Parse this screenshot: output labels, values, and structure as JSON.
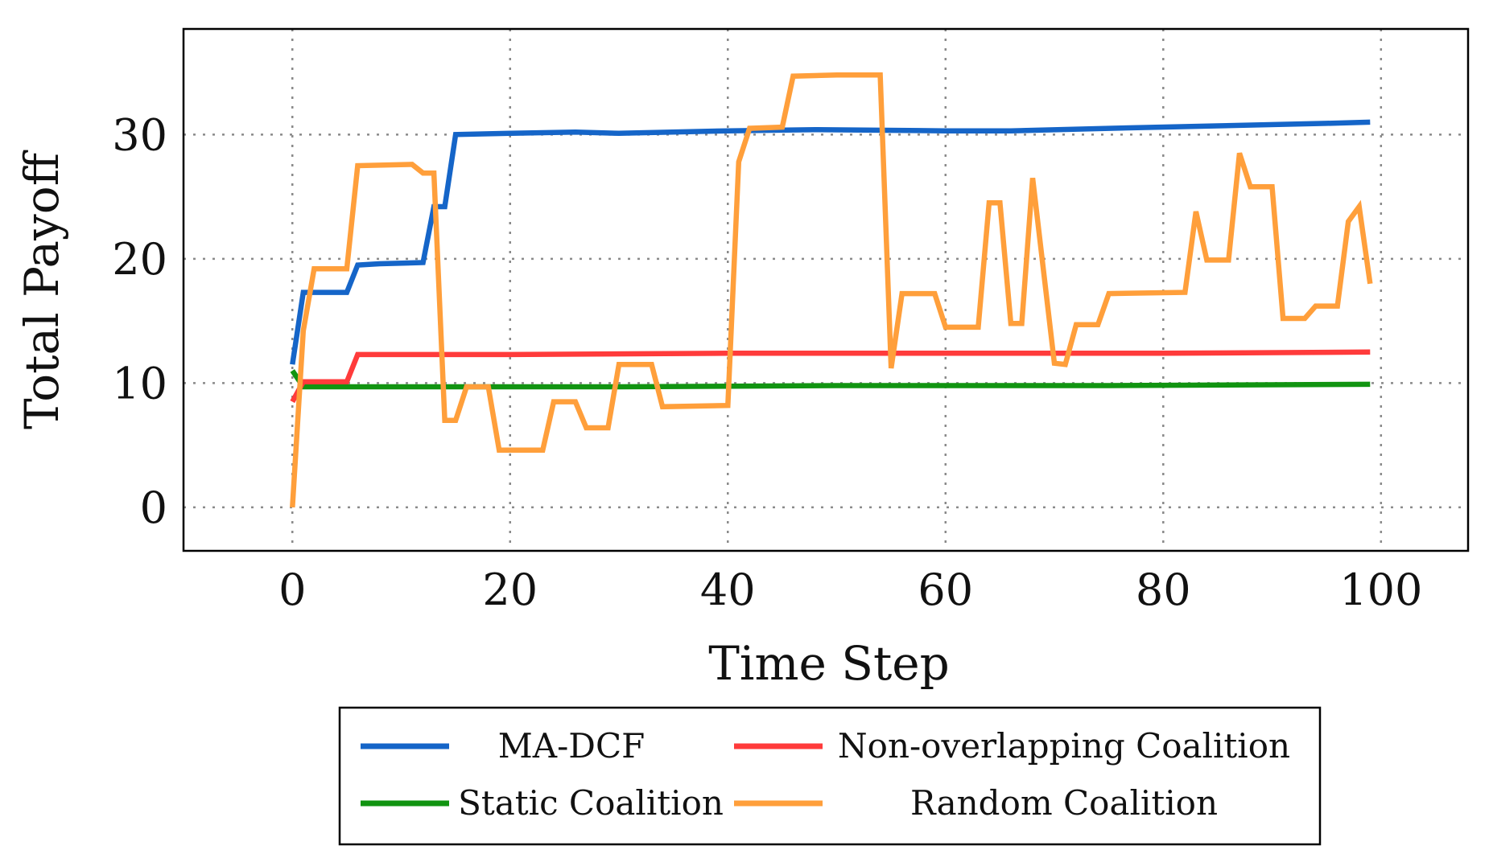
{
  "chart_data": {
    "type": "line",
    "title": "",
    "xlabel": "Time Step",
    "ylabel": "Total Payoff",
    "xlim": [
      -10,
      108
    ],
    "ylim": [
      -3.5,
      38.5
    ],
    "xticks": [
      0,
      20,
      40,
      60,
      80,
      100
    ],
    "yticks": [
      0,
      10,
      20,
      30
    ],
    "grid": true,
    "legend_position": "bottom",
    "series": [
      {
        "name": "MA-DCF",
        "color": "#1565c8",
        "points": [
          [
            0,
            11.5
          ],
          [
            1,
            17.3
          ],
          [
            2,
            17.3
          ],
          [
            5,
            17.3
          ],
          [
            6,
            19.5
          ],
          [
            8,
            19.6
          ],
          [
            12,
            19.7
          ],
          [
            13,
            24.2
          ],
          [
            14,
            24.2
          ],
          [
            15,
            30.0
          ],
          [
            20,
            30.1
          ],
          [
            26,
            30.2
          ],
          [
            30,
            30.1
          ],
          [
            40,
            30.3
          ],
          [
            48,
            30.4
          ],
          [
            60,
            30.3
          ],
          [
            66,
            30.3
          ],
          [
            75,
            30.5
          ],
          [
            85,
            30.7
          ],
          [
            95,
            30.9
          ],
          [
            99,
            31.0
          ]
        ]
      },
      {
        "name": "Non-overlapping Coalition",
        "color": "#ff3b3b",
        "points": [
          [
            0,
            8.5
          ],
          [
            1,
            10.1
          ],
          [
            5,
            10.1
          ],
          [
            6,
            12.3
          ],
          [
            10,
            12.3
          ],
          [
            20,
            12.3
          ],
          [
            40,
            12.4
          ],
          [
            60,
            12.4
          ],
          [
            80,
            12.4
          ],
          [
            99,
            12.5
          ]
        ]
      },
      {
        "name": "Static Coalition",
        "color": "#119411",
        "points": [
          [
            0,
            11.0
          ],
          [
            1,
            9.7
          ],
          [
            10,
            9.7
          ],
          [
            30,
            9.7
          ],
          [
            50,
            9.8
          ],
          [
            75,
            9.8
          ],
          [
            99,
            9.9
          ]
        ]
      },
      {
        "name": "Random Coalition",
        "color": "#ff9f3b",
        "points": [
          [
            0,
            0.0
          ],
          [
            1,
            14.2
          ],
          [
            2,
            19.2
          ],
          [
            5,
            19.2
          ],
          [
            6,
            27.5
          ],
          [
            11,
            27.6
          ],
          [
            12,
            26.9
          ],
          [
            13,
            26.9
          ],
          [
            14,
            7.0
          ],
          [
            15,
            7.0
          ],
          [
            16,
            9.7
          ],
          [
            18,
            9.7
          ],
          [
            19,
            4.6
          ],
          [
            23,
            4.6
          ],
          [
            24,
            8.5
          ],
          [
            26,
            8.5
          ],
          [
            27,
            6.4
          ],
          [
            29,
            6.4
          ],
          [
            30,
            11.5
          ],
          [
            33,
            11.5
          ],
          [
            34,
            8.1
          ],
          [
            40,
            8.2
          ],
          [
            41,
            27.8
          ],
          [
            42,
            30.5
          ],
          [
            45,
            30.6
          ],
          [
            46,
            34.7
          ],
          [
            50,
            34.8
          ],
          [
            54,
            34.8
          ],
          [
            55,
            11.2
          ],
          [
            56,
            17.2
          ],
          [
            59,
            17.2
          ],
          [
            60,
            14.5
          ],
          [
            63,
            14.5
          ],
          [
            64,
            24.5
          ],
          [
            65,
            24.5
          ],
          [
            66,
            14.8
          ],
          [
            67,
            14.8
          ],
          [
            68,
            26.5
          ],
          [
            70,
            11.6
          ],
          [
            71,
            11.5
          ],
          [
            72,
            14.7
          ],
          [
            74,
            14.7
          ],
          [
            75,
            17.2
          ],
          [
            82,
            17.3
          ],
          [
            83,
            23.8
          ],
          [
            84,
            19.9
          ],
          [
            86,
            19.9
          ],
          [
            87,
            28.5
          ],
          [
            88,
            25.8
          ],
          [
            90,
            25.8
          ],
          [
            91,
            15.2
          ],
          [
            93,
            15.2
          ],
          [
            94,
            16.2
          ],
          [
            96,
            16.2
          ],
          [
            97,
            23.0
          ],
          [
            98,
            24.2
          ],
          [
            99,
            18.0
          ]
        ]
      }
    ]
  }
}
